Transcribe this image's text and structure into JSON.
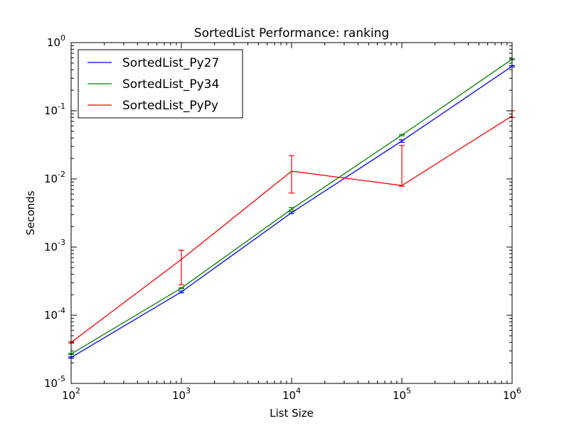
{
  "chart_data": {
    "type": "line",
    "title": "SortedList Performance: ranking",
    "xlabel": "List Size",
    "ylabel": "Seconds",
    "xscale": "log",
    "yscale": "log",
    "xlim": [
      100,
      1000000
    ],
    "ylim": [
      1e-05,
      1
    ],
    "grid": false,
    "legend_position": "top-left",
    "xticks": [
      {
        "value": 100,
        "base": "10",
        "exp": "2"
      },
      {
        "value": 1000,
        "base": "10",
        "exp": "3"
      },
      {
        "value": 10000,
        "base": "10",
        "exp": "4"
      },
      {
        "value": 100000,
        "base": "10",
        "exp": "5"
      },
      {
        "value": 1000000,
        "base": "10",
        "exp": "6"
      }
    ],
    "yticks": [
      {
        "value": 1e-05,
        "base": "10",
        "exp": "-5"
      },
      {
        "value": 0.0001,
        "base": "10",
        "exp": "-4"
      },
      {
        "value": 0.001,
        "base": "10",
        "exp": "-3"
      },
      {
        "value": 0.01,
        "base": "10",
        "exp": "-2"
      },
      {
        "value": 0.1,
        "base": "10",
        "exp": "-1"
      },
      {
        "value": 1,
        "base": "10",
        "exp": "0"
      }
    ],
    "x": [
      100,
      1000,
      10000,
      100000,
      1000000
    ],
    "series": [
      {
        "name": "SortedList_Py27",
        "color": "#0000ff",
        "values": [
          2.4e-05,
          0.00022,
          0.0032,
          0.036,
          0.45
        ],
        "err_low": [
          2.35e-05,
          0.000213,
          0.0031,
          0.0345,
          0.44
        ],
        "err_high": [
          2.45e-05,
          0.000227,
          0.0033,
          0.0375,
          0.46
        ]
      },
      {
        "name": "SortedList_Py34",
        "color": "#008000",
        "values": [
          2.7e-05,
          0.00025,
          0.0036,
          0.044,
          0.57
        ],
        "err_low": [
          2.65e-05,
          0.000245,
          0.0035,
          0.043,
          0.56
        ],
        "err_high": [
          2.75e-05,
          0.000255,
          0.0038,
          0.045,
          0.58
        ]
      },
      {
        "name": "SortedList_PyPy",
        "color": "#ff0000",
        "values": [
          4e-05,
          0.00066,
          0.013,
          0.008,
          0.084
        ],
        "err_low": [
          3.9e-05,
          0.00028,
          0.0062,
          0.0078,
          0.08
        ],
        "err_high": [
          4.1e-05,
          0.0009,
          0.022,
          0.031,
          0.1
        ]
      }
    ]
  }
}
